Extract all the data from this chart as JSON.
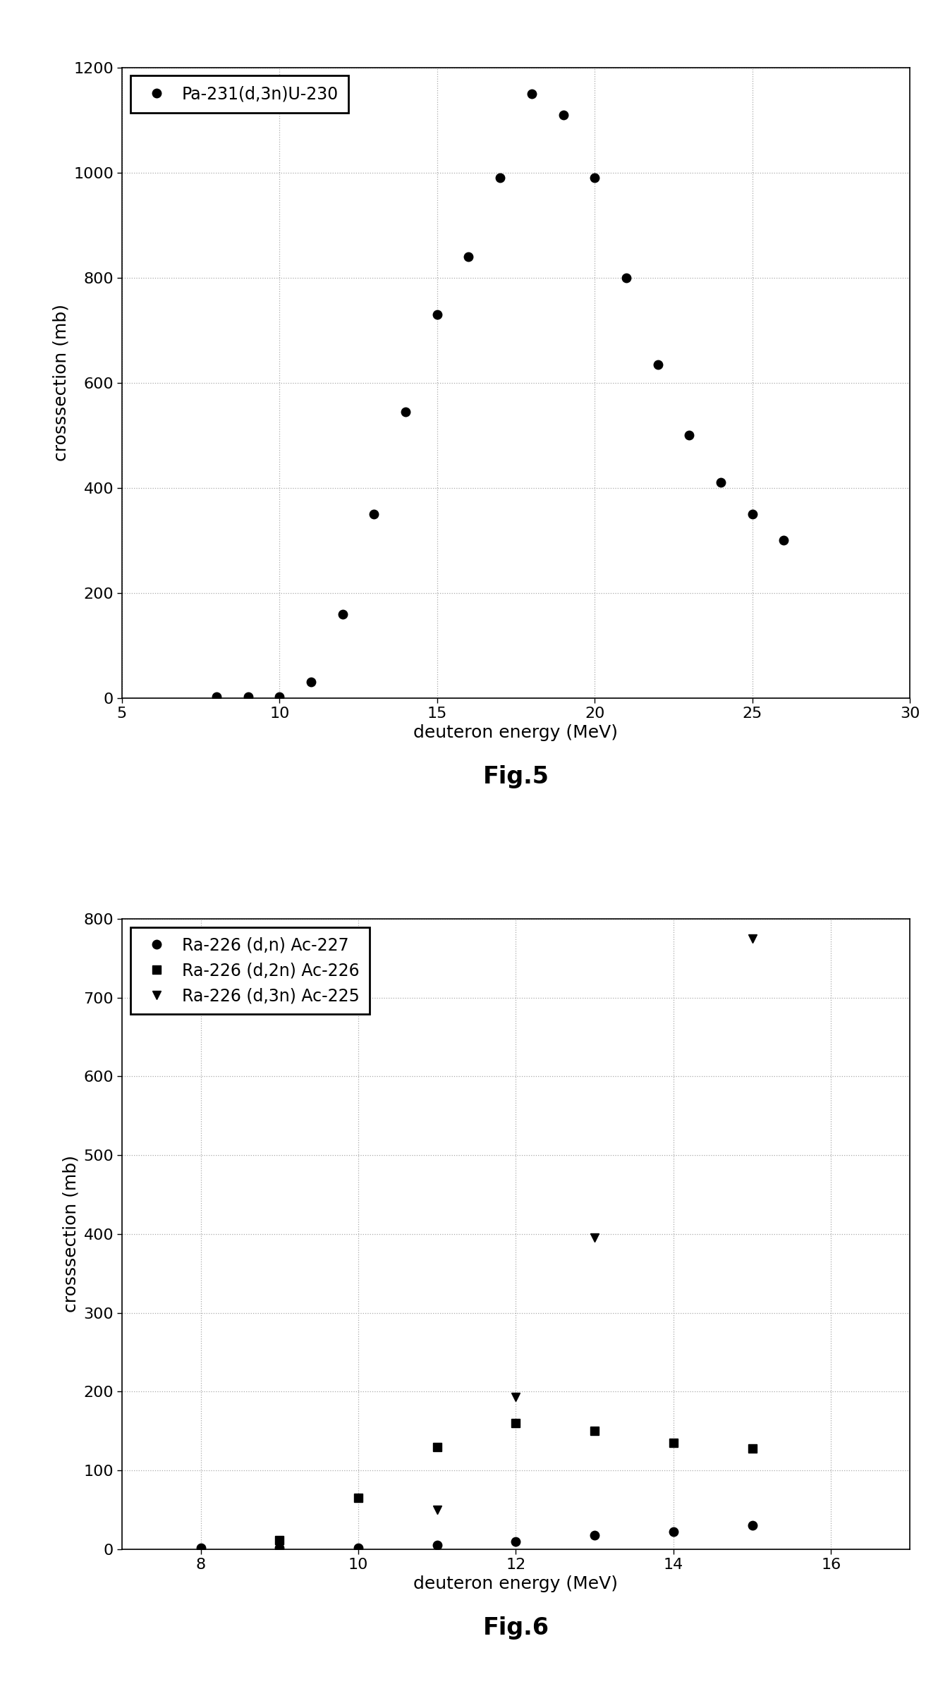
{
  "fig5": {
    "title": "Fig.5",
    "xlabel": "deuteron energy (MeV)",
    "ylabel": "crosssection (mb)",
    "xlim": [
      5,
      30
    ],
    "ylim": [
      0,
      1200
    ],
    "xticks": [
      5,
      10,
      15,
      20,
      25,
      30
    ],
    "yticks": [
      0,
      200,
      400,
      600,
      800,
      1000,
      1200
    ],
    "series": [
      {
        "label": "Pa-231(d,3n)U-230",
        "marker": "o",
        "color": "black",
        "x": [
          8,
          9,
          10,
          11,
          12,
          13,
          14,
          15,
          16,
          17,
          18,
          19,
          20,
          21,
          22,
          23,
          24,
          25,
          26
        ],
        "y": [
          2,
          2,
          2,
          30,
          160,
          350,
          545,
          730,
          840,
          990,
          1150,
          1110,
          990,
          800,
          635,
          500,
          410,
          350,
          300
        ]
      }
    ]
  },
  "fig6": {
    "title": "Fig.6",
    "xlabel": "deuteron energy (MeV)",
    "ylabel": "crosssection (mb)",
    "xlim": [
      7,
      17
    ],
    "ylim": [
      0,
      800
    ],
    "xticks": [
      8,
      10,
      12,
      14,
      16
    ],
    "yticks": [
      0,
      100,
      200,
      300,
      400,
      500,
      600,
      700,
      800
    ],
    "series": [
      {
        "label": "Ra-226 (d,n) Ac-227",
        "marker": "o",
        "color": "black",
        "x": [
          8,
          9,
          10,
          11,
          12,
          13,
          14,
          15
        ],
        "y": [
          2,
          2,
          2,
          5,
          10,
          18,
          22,
          30
        ]
      },
      {
        "label": "Ra-226 (d,2n) Ac-226",
        "marker": "s",
        "color": "black",
        "x": [
          9,
          10,
          11,
          12,
          13,
          14,
          15
        ],
        "y": [
          12,
          65,
          130,
          160,
          150,
          135,
          128
        ]
      },
      {
        "label": "Ra-226 (d,3n) Ac-225",
        "marker": "v",
        "color": "black",
        "x": [
          11,
          12,
          13,
          15
        ],
        "y": [
          50,
          193,
          395,
          775
        ]
      }
    ]
  },
  "background_color": "#ffffff",
  "fig_facecolor": "#ffffff",
  "grid_color": "#aaaaaa",
  "marker_size": 9,
  "tick_labelsize": 16,
  "axis_labelsize": 18,
  "legend_fontsize": 17,
  "caption_fontsize": 24
}
